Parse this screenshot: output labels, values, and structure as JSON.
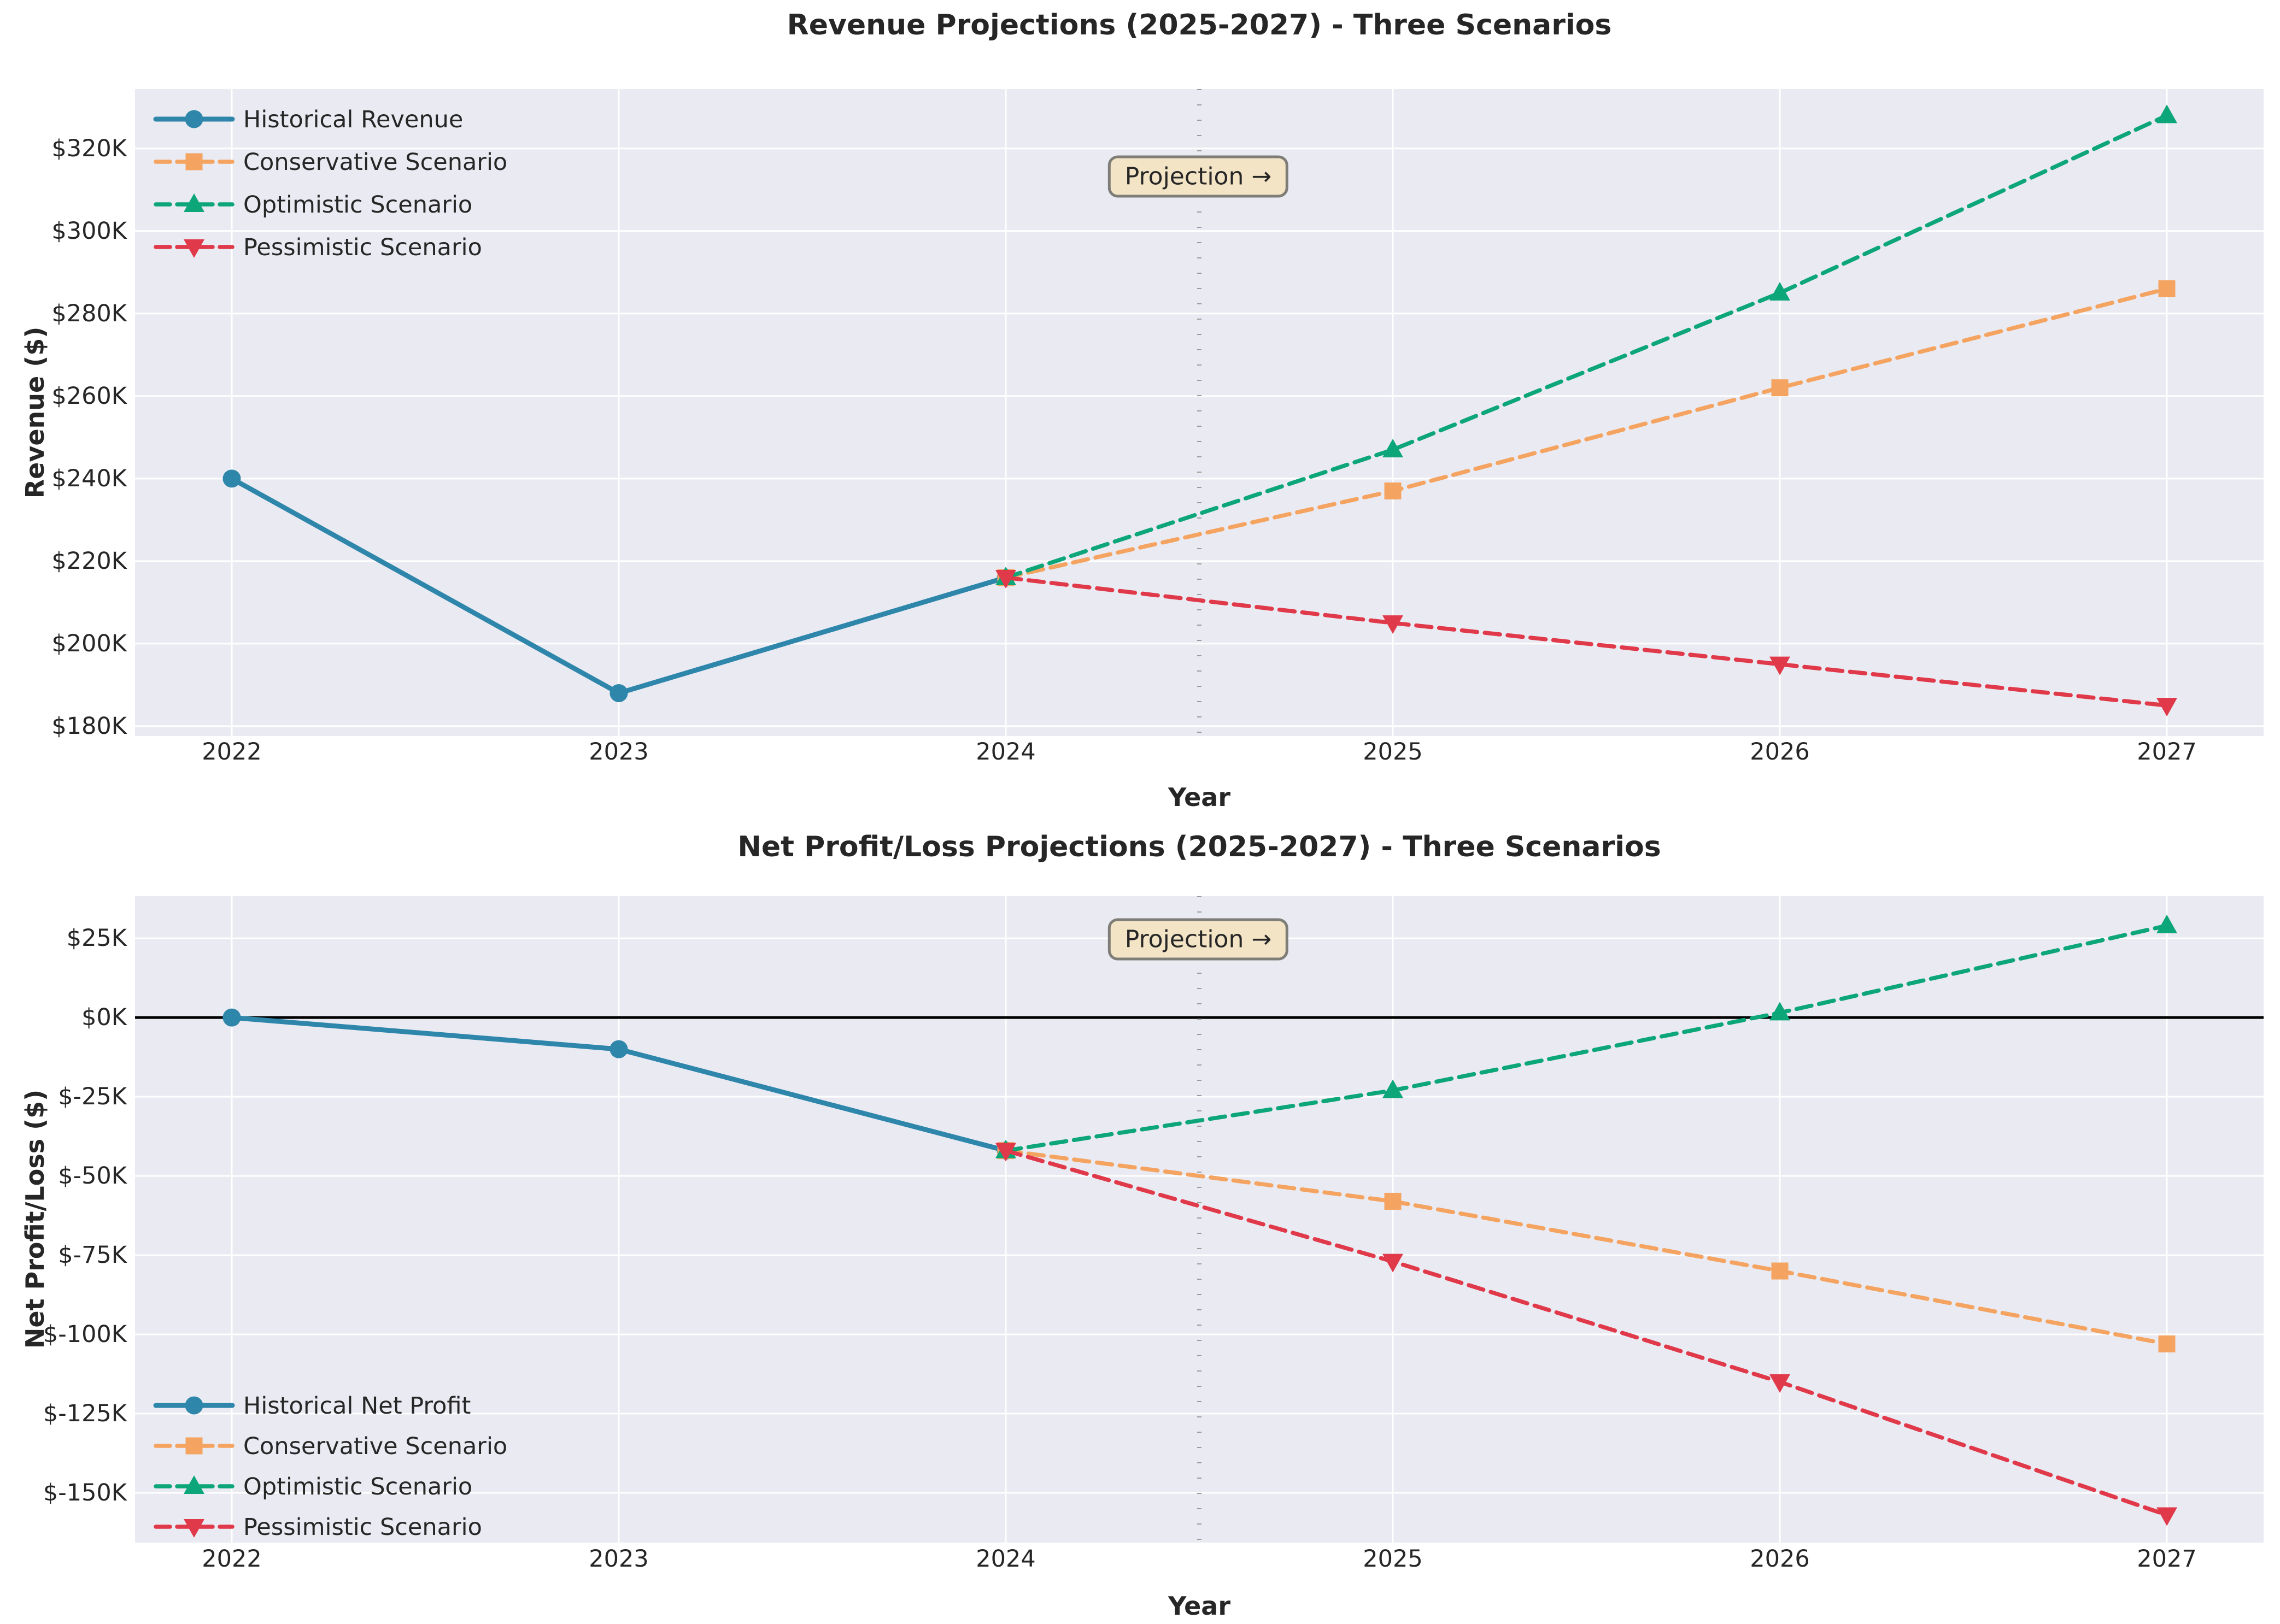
{
  "figure": {
    "background": "#ffffff",
    "plot_background": "#eaeaf2",
    "grid_color": "#ffffff",
    "text_color": "#262626",
    "units": "USD thousands"
  },
  "chart_data": [
    {
      "type": "line",
      "title": "Revenue Projections (2025-2027) - Three Scenarios",
      "xlabel": "Year",
      "ylabel": "Revenue ($)",
      "x": [
        2022,
        2023,
        2024,
        2025,
        2026,
        2027
      ],
      "x_tick_labels": [
        "2022",
        "2023",
        "2024",
        "2025",
        "2026",
        "2027"
      ],
      "ylim": [
        177.6,
        334.4
      ],
      "y_ticks": [
        {
          "value": 320,
          "label": "$320K"
        },
        {
          "value": 300,
          "label": "$300K"
        },
        {
          "value": 280,
          "label": "$280K"
        },
        {
          "value": 260,
          "label": "$260K"
        },
        {
          "value": 240,
          "label": "$240K"
        },
        {
          "value": 220,
          "label": "$220K"
        },
        {
          "value": 200,
          "label": "$200K"
        },
        {
          "value": 180,
          "label": "$180K"
        }
      ],
      "grid": true,
      "zero_line": false,
      "legend_position": "upper left",
      "annotation": {
        "text": "Projection →",
        "x": 2024.5,
        "line_style": "dotted",
        "line_color": "#9c9c9c",
        "box_fill": "#f3e4c6",
        "box_border": "#7f7d78"
      },
      "series": [
        {
          "name": "Historical Revenue",
          "color": "#2e86ab",
          "line_style": "solid",
          "marker": "circle",
          "x": [
            2022,
            2023,
            2024
          ],
          "values": [
            240,
            188,
            216
          ]
        },
        {
          "name": "Conservative Scenario",
          "color": "#f4a460",
          "line_style": "dashed",
          "marker": "square",
          "x": [
            2024,
            2025,
            2026,
            2027
          ],
          "values": [
            216,
            237,
            262,
            286
          ]
        },
        {
          "name": "Optimistic Scenario",
          "color": "#0ca678",
          "line_style": "dashed",
          "marker": "triangle-up",
          "x": [
            2024,
            2025,
            2026,
            2027
          ],
          "values": [
            216,
            247,
            285,
            328
          ]
        },
        {
          "name": "Pessimistic Scenario",
          "color": "#e0394a",
          "line_style": "dashed",
          "marker": "triangle-down",
          "x": [
            2024,
            2025,
            2026,
            2027
          ],
          "values": [
            216,
            205,
            195,
            185
          ]
        }
      ]
    },
    {
      "type": "line",
      "title": "Net Profit/Loss Projections (2025-2027) - Three Scenarios",
      "xlabel": "Year",
      "ylabel": "Net Profit/Loss ($)",
      "x": [
        2022,
        2023,
        2024,
        2025,
        2026,
        2027
      ],
      "x_tick_labels": [
        "2022",
        "2023",
        "2024",
        "2025",
        "2026",
        "2027"
      ],
      "ylim": [
        -165.7,
        38.3
      ],
      "y_ticks": [
        {
          "value": 25,
          "label": "$25K"
        },
        {
          "value": 0,
          "label": "$0K"
        },
        {
          "value": -25,
          "label": "$-25K"
        },
        {
          "value": -50,
          "label": "$-50K"
        },
        {
          "value": -75,
          "label": "$-75K"
        },
        {
          "value": -100,
          "label": "$-100K"
        },
        {
          "value": -125,
          "label": "$-125K"
        },
        {
          "value": -150,
          "label": "$-150K"
        }
      ],
      "grid": true,
      "zero_line": true,
      "legend_position": "lower left",
      "annotation": {
        "text": "Projection →",
        "x": 2024.5,
        "line_style": "dotted",
        "line_color": "#9c9c9c",
        "box_fill": "#f3e4c6",
        "box_border": "#7f7d78"
      },
      "series": [
        {
          "name": "Historical Net Profit",
          "color": "#2e86ab",
          "line_style": "solid",
          "marker": "circle",
          "x": [
            2022,
            2023,
            2024
          ],
          "values": [
            0,
            -10,
            -42
          ]
        },
        {
          "name": "Conservative Scenario",
          "color": "#f4a460",
          "line_style": "dashed",
          "marker": "square",
          "x": [
            2024,
            2025,
            2026,
            2027
          ],
          "values": [
            -42,
            -58,
            -80,
            -103
          ]
        },
        {
          "name": "Optimistic Scenario",
          "color": "#0ca678",
          "line_style": "dashed",
          "marker": "triangle-up",
          "x": [
            2024,
            2025,
            2026,
            2027
          ],
          "values": [
            -42,
            -23,
            1.5,
            29
          ]
        },
        {
          "name": "Pessimistic Scenario",
          "color": "#e0394a",
          "line_style": "dashed",
          "marker": "triangle-down",
          "x": [
            2024,
            2025,
            2026,
            2027
          ],
          "values": [
            -42,
            -77,
            -115,
            -157
          ]
        }
      ]
    }
  ]
}
